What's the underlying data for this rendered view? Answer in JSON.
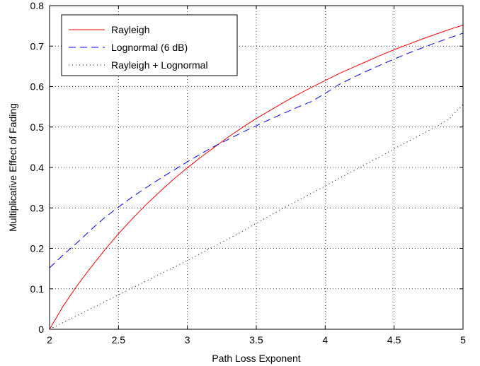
{
  "chart_data": {
    "type": "line",
    "title": "",
    "xlabel": "Path Loss Exponent",
    "ylabel": "Multiplicative Effect of Fading",
    "xlim": [
      2,
      5
    ],
    "ylim": [
      0,
      0.8
    ],
    "xticks": [
      2,
      2.5,
      3,
      3.5,
      4,
      4.5,
      5
    ],
    "yticks": [
      0,
      0.1,
      0.2,
      0.3,
      0.4,
      0.5,
      0.6,
      0.7,
      0.8
    ],
    "xtick_labels": [
      "2",
      "2.5",
      "3",
      "3.5",
      "4",
      "4.5",
      "5"
    ],
    "ytick_labels": [
      "0",
      "0.1",
      "0.2",
      "0.3",
      "0.4",
      "0.5",
      "0.6",
      "0.7",
      "0.8"
    ],
    "grid": true,
    "legend_position": "top-left",
    "series": [
      {
        "name": "Rayleigh",
        "color": "#ff0000",
        "style": "solid",
        "x": [
          2.0,
          2.1,
          2.2,
          2.3,
          2.4,
          2.5,
          2.6,
          2.7,
          2.8,
          2.9,
          3.0,
          3.1,
          3.2,
          3.3,
          3.4,
          3.5,
          3.6,
          3.7,
          3.8,
          3.9,
          4.0,
          4.1,
          4.2,
          4.3,
          4.4,
          4.5,
          4.6,
          4.7,
          4.8,
          4.9,
          5.0
        ],
        "y": [
          0.0,
          0.058,
          0.108,
          0.153,
          0.196,
          0.236,
          0.273,
          0.308,
          0.34,
          0.371,
          0.399,
          0.426,
          0.451,
          0.476,
          0.499,
          0.521,
          0.541,
          0.561,
          0.58,
          0.598,
          0.615,
          0.632,
          0.647,
          0.662,
          0.677,
          0.691,
          0.704,
          0.717,
          0.729,
          0.741,
          0.752
        ]
      },
      {
        "name": "Lognormal (6 dB)",
        "color": "#0000ff",
        "style": "dashed",
        "x": [
          2.0,
          2.1,
          2.2,
          2.3,
          2.4,
          2.5,
          2.6,
          2.7,
          2.8,
          2.9,
          3.0,
          3.1,
          3.2,
          3.3,
          3.4,
          3.5,
          3.6,
          3.7,
          3.8,
          3.9,
          4.0,
          4.1,
          4.2,
          4.3,
          4.4,
          4.5,
          4.6,
          4.7,
          4.8,
          4.9,
          5.0
        ],
        "y": [
          0.152,
          0.184,
          0.214,
          0.246,
          0.276,
          0.302,
          0.327,
          0.35,
          0.372,
          0.393,
          0.414,
          0.434,
          0.453,
          0.47,
          0.487,
          0.503,
          0.519,
          0.534,
          0.549,
          0.563,
          0.583,
          0.605,
          0.622,
          0.638,
          0.653,
          0.668,
          0.682,
          0.695,
          0.708,
          0.72,
          0.732
        ]
      },
      {
        "name": "Rayleigh + Lognormal",
        "color": "#000000",
        "style": "dotted",
        "x": [
          2.0,
          2.1,
          2.2,
          2.3,
          2.4,
          2.5,
          2.6,
          2.7,
          2.8,
          2.9,
          3.0,
          3.1,
          3.2,
          3.3,
          3.4,
          3.5,
          3.6,
          3.7,
          3.8,
          3.9,
          4.0,
          4.1,
          4.2,
          4.3,
          4.4,
          4.5,
          4.6,
          4.7,
          4.8,
          4.9,
          5.0
        ],
        "y": [
          0.0,
          0.017,
          0.034,
          0.051,
          0.068,
          0.085,
          0.102,
          0.119,
          0.136,
          0.153,
          0.17,
          0.188,
          0.206,
          0.224,
          0.242,
          0.262,
          0.281,
          0.3,
          0.318,
          0.336,
          0.354,
          0.373,
          0.391,
          0.409,
          0.427,
          0.446,
          0.464,
          0.482,
          0.5,
          0.52,
          0.556
        ]
      }
    ]
  }
}
